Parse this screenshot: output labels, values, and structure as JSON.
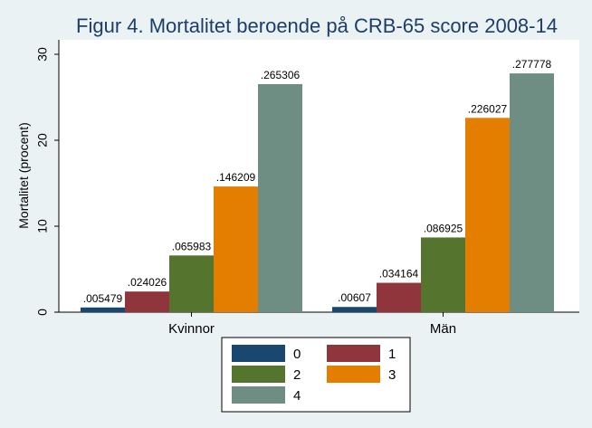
{
  "chart_data": {
    "type": "bar",
    "title": "Figur 4. Mortalitet beroende på CRB-65 score 2008-14",
    "xlabel": "",
    "ylabel": "Mortalitet (procent)",
    "ylim": [
      0,
      30
    ],
    "yticks": [
      0,
      10,
      20,
      30
    ],
    "categories": [
      "Kvinnor",
      "Män"
    ],
    "series": [
      {
        "name": "0",
        "color": "#1a476f",
        "values": [
          0.5479,
          0.607
        ],
        "labels": [
          ".005479",
          ".00607"
        ]
      },
      {
        "name": "1",
        "color": "#90353b",
        "values": [
          2.4026,
          3.4164
        ],
        "labels": [
          ".024026",
          ".034164"
        ]
      },
      {
        "name": "2",
        "color": "#55752f",
        "values": [
          6.5983,
          8.6925
        ],
        "labels": [
          ".065983",
          ".086925"
        ]
      },
      {
        "name": "3",
        "color": "#e37e00",
        "values": [
          14.6209,
          22.6027
        ],
        "labels": [
          ".146209",
          ".226027"
        ]
      },
      {
        "name": "4",
        "color": "#6e8e84",
        "values": [
          26.5306,
          27.7778
        ],
        "labels": [
          ".265306",
          ".277778"
        ]
      }
    ],
    "grid": false,
    "legend_position": "bottom"
  }
}
